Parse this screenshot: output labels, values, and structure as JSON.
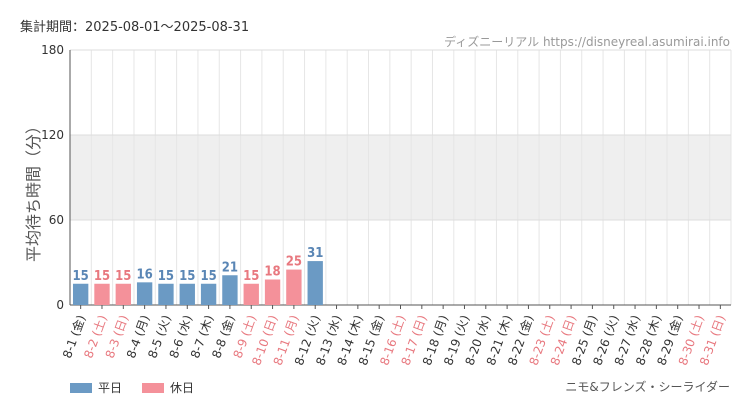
{
  "header": {
    "period": "集計期間：2025-08-01～2025-08-31",
    "site": "ディズニーリアル https://disneyreal.asumirai.info"
  },
  "footer": {
    "attraction": "ニモ&フレンズ・シーライダー"
  },
  "colors": {
    "weekday": "#6b9ac4",
    "holiday": "#f4919a",
    "weekday_text": "#5a86b5",
    "holiday_text": "#e8787f"
  },
  "chart_data": {
    "type": "bar",
    "ylabel": "平均待ち時間（分）",
    "ylim": [
      0,
      180
    ],
    "yticks": [
      "0",
      "60",
      "120",
      "180"
    ],
    "categories": [
      "8-1 (金)",
      "8-2 (土)",
      "8-3 (日)",
      "8-4 (月)",
      "8-5 (火)",
      "8-6 (水)",
      "8-7 (木)",
      "8-8 (金)",
      "8-9 (土)",
      "8-10 (日)",
      "8-11 (月)",
      "8-12 (火)",
      "8-13 (水)",
      "8-14 (木)",
      "8-15 (金)",
      "8-16 (土)",
      "8-17 (日)",
      "8-18 (月)",
      "8-19 (火)",
      "8-20 (水)",
      "8-21 (木)",
      "8-22 (金)",
      "8-23 (土)",
      "8-24 (日)",
      "8-25 (月)",
      "8-26 (火)",
      "8-27 (水)",
      "8-28 (木)",
      "8-29 (金)",
      "8-30 (土)",
      "8-31 (日)"
    ],
    "values": [
      15,
      15,
      15,
      16,
      15,
      15,
      15,
      21,
      15,
      18,
      25,
      31,
      0,
      0,
      0,
      0,
      0,
      0,
      0,
      0,
      0,
      0,
      0,
      0,
      0,
      0,
      0,
      0,
      0,
      0,
      0
    ],
    "day_type": [
      "weekday",
      "holiday",
      "holiday",
      "weekday",
      "weekday",
      "weekday",
      "weekday",
      "weekday",
      "holiday",
      "holiday",
      "holiday",
      "weekday",
      "weekday",
      "weekday",
      "weekday",
      "holiday",
      "holiday",
      "weekday",
      "weekday",
      "weekday",
      "weekday",
      "weekday",
      "holiday",
      "holiday",
      "weekday",
      "weekday",
      "weekday",
      "weekday",
      "weekday",
      "holiday",
      "holiday"
    ],
    "has_data": [
      true,
      true,
      true,
      true,
      true,
      true,
      true,
      true,
      true,
      true,
      true,
      true,
      false,
      false,
      false,
      false,
      false,
      false,
      false,
      false,
      false,
      false,
      false,
      false,
      false,
      false,
      false,
      false,
      false,
      false,
      false
    ],
    "legend": [
      {
        "name": "平日",
        "type": "weekday"
      },
      {
        "name": "休日",
        "type": "holiday"
      }
    ],
    "legend_position": "bottom-left",
    "grid": true,
    "shaded_band": [
      60,
      120
    ]
  }
}
